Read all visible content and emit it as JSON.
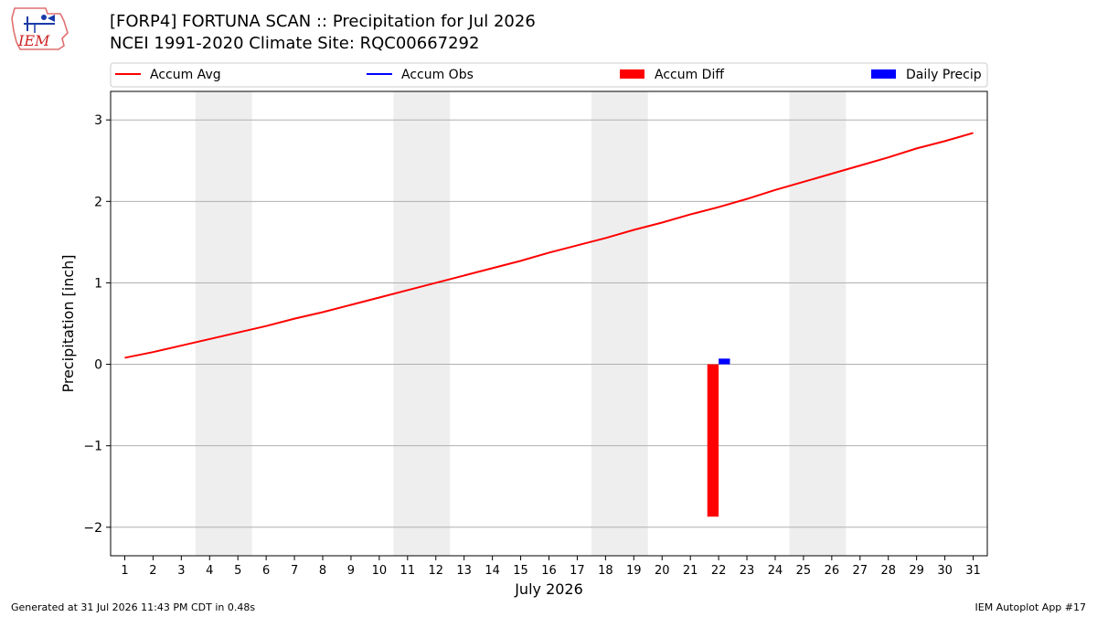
{
  "header": {
    "logo_text": "IEM",
    "title_line1": "[FORP4] FORTUNA SCAN :: Precipitation for Jul 2026",
    "title_line2": "NCEI 1991-2020 Climate Site: RQC00667292"
  },
  "footer": {
    "left": "Generated at 31 Jul 2026 11:43 PM CDT in 0.48s",
    "right": "IEM Autoplot App #17"
  },
  "colors": {
    "accum_avg": "#ff0000",
    "accum_obs": "#0000ff",
    "accum_diff": "#ff0000",
    "daily_precip": "#0000ff",
    "weekend_band": "#eeeeee",
    "grid": "#b0b0b0"
  },
  "chart_data": {
    "type": "line",
    "xlabel": "July 2026",
    "ylabel": "Precipitation [inch]",
    "xlim": [
      0.5,
      31.5
    ],
    "ylim": [
      -2.35,
      3.35
    ],
    "yticks": [
      -2,
      -1,
      0,
      1,
      2,
      3
    ],
    "ytick_labels": [
      "−2",
      "−1",
      "0",
      "1",
      "2",
      "3"
    ],
    "x": [
      1,
      2,
      3,
      4,
      5,
      6,
      7,
      8,
      9,
      10,
      11,
      12,
      13,
      14,
      15,
      16,
      17,
      18,
      19,
      20,
      21,
      22,
      23,
      24,
      25,
      26,
      27,
      28,
      29,
      30,
      31
    ],
    "grid": "horizontal",
    "legend_position": "top",
    "legend": [
      "Accum Avg",
      "Accum Obs",
      "Accum Diff",
      "Daily Precip"
    ],
    "weekend_bands": [
      [
        3.5,
        5.5
      ],
      [
        10.5,
        12.5
      ],
      [
        17.5,
        19.5
      ],
      [
        24.5,
        26.5
      ]
    ],
    "series": [
      {
        "name": "Accum Avg",
        "kind": "line",
        "values": [
          0.08,
          0.15,
          0.23,
          0.31,
          0.39,
          0.47,
          0.56,
          0.64,
          0.73,
          0.82,
          0.91,
          1.0,
          1.09,
          1.18,
          1.27,
          1.37,
          1.46,
          1.55,
          1.65,
          1.74,
          1.84,
          1.93,
          2.03,
          2.14,
          2.24,
          2.34,
          2.44,
          2.54,
          2.65,
          2.74,
          2.84
        ]
      },
      {
        "name": "Accum Diff",
        "kind": "bar",
        "points": [
          {
            "x": 22,
            "value": -1.87
          }
        ]
      },
      {
        "name": "Daily Precip",
        "kind": "bar",
        "points": [
          {
            "x": 22,
            "value": 0.07
          }
        ]
      }
    ]
  }
}
